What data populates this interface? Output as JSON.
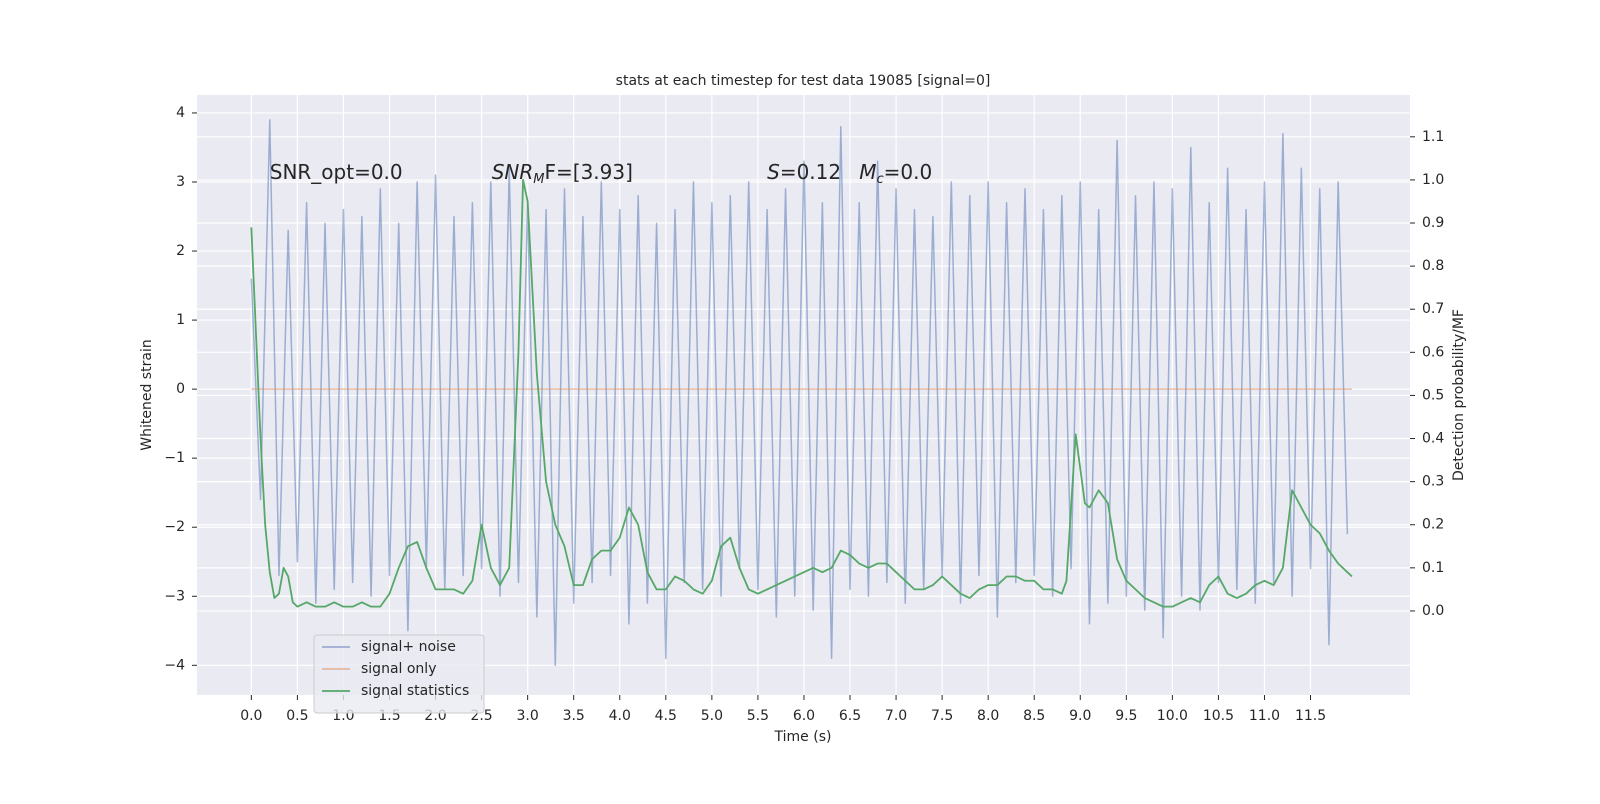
{
  "chart_data": {
    "type": "line",
    "title": "stats at each timestep for test data 19085 [signal=0]",
    "xlabel": "Time (s)",
    "ylabel": "Whitened strain",
    "y2label": "Detection probability/MF",
    "xlim": [
      -0.59,
      12.58
    ],
    "ylim": [
      -4.43,
      4.26
    ],
    "y2lim": [
      -0.195,
      1.197
    ],
    "xticks": [
      {
        "value": 0,
        "label": "0.0"
      },
      0.5,
      {
        "value": 1,
        "label": "1.0"
      },
      1.5,
      {
        "value": 2,
        "label": "2.0"
      },
      2.5,
      {
        "value": 3,
        "label": "3.0"
      },
      3.5,
      {
        "value": 4,
        "label": "4.0"
      },
      4.5,
      {
        "value": 5,
        "label": "5.0"
      },
      5.5,
      {
        "value": 6,
        "label": "6.0"
      },
      6.5,
      {
        "value": 7,
        "label": "7.0"
      },
      7.5,
      {
        "value": 8,
        "label": "8.0"
      },
      8.5,
      {
        "value": 9,
        "label": "9.0"
      },
      9.5,
      {
        "value": 10,
        "label": "10.0"
      },
      10.5,
      {
        "value": 11,
        "label": "11.0"
      },
      11.5
    ],
    "yticks": [
      {
        "value": -4,
        "label": "−4"
      },
      {
        "value": -3,
        "label": "−3"
      },
      {
        "value": -2,
        "label": "−2"
      },
      {
        "value": -1,
        "label": "−1"
      },
      0,
      1,
      2,
      3,
      4
    ],
    "y2ticks": [
      {
        "value": 0,
        "label": "0.0"
      },
      0.1,
      0.2,
      0.3,
      0.4,
      0.5,
      0.6,
      0.7,
      0.8,
      0.9,
      {
        "value": 1,
        "label": "1.0"
      },
      1.1
    ],
    "grid": true,
    "legend": "lower left",
    "series": [
      {
        "name": "signal+ noise",
        "color": "#4c72b0",
        "opacity": 0.5,
        "x": [
          0,
          0.1,
          0.2,
          0.3,
          0.4,
          0.5,
          0.6,
          0.7,
          0.8,
          0.9,
          1,
          1.1,
          1.2,
          1.3,
          1.4,
          1.5,
          1.6,
          1.7,
          1.8,
          1.9,
          2,
          2.1,
          2.2,
          2.3,
          2.4,
          2.5,
          2.6,
          2.7,
          2.8,
          2.9,
          3,
          3.1,
          3.2,
          3.3,
          3.4,
          3.5,
          3.6,
          3.7,
          3.8,
          3.9,
          4,
          4.1,
          4.2,
          4.3,
          4.4,
          4.5,
          4.6,
          4.7,
          4.8,
          4.9,
          5,
          5.1,
          5.2,
          5.3,
          5.4,
          5.5,
          5.6,
          5.7,
          5.8,
          5.9,
          6,
          6.1,
          6.2,
          6.3,
          6.4,
          6.5,
          6.6,
          6.7,
          6.8,
          6.9,
          7,
          7.1,
          7.2,
          7.3,
          7.4,
          7.5,
          7.6,
          7.7,
          7.8,
          7.9,
          8,
          8.1,
          8.2,
          8.3,
          8.4,
          8.5,
          8.6,
          8.7,
          8.8,
          8.9,
          9,
          9.1,
          9.2,
          9.3,
          9.4,
          9.5,
          9.6,
          9.7,
          9.8,
          9.9,
          10,
          10.1,
          10.2,
          10.3,
          10.4,
          10.5,
          10.6,
          10.7,
          10.8,
          10.9,
          11,
          11.1,
          11.2,
          11.3,
          11.4,
          11.5,
          11.6,
          11.7,
          11.8,
          11.9
        ],
        "values": [
          1.6,
          -1.6,
          3.9,
          -2.7,
          2.3,
          -2.5,
          2.7,
          -3.1,
          2.4,
          -2.9,
          2.6,
          -2.8,
          2.5,
          -3.0,
          2.9,
          -2.7,
          2.4,
          -3.5,
          3.0,
          -2.6,
          3.1,
          -2.9,
          2.5,
          -2.7,
          2.7,
          -2.6,
          3.0,
          -3.0,
          3.2,
          -2.8,
          2.7,
          -3.3,
          2.6,
          -4.0,
          2.9,
          -3.1,
          2.5,
          -2.8,
          3.0,
          -2.7,
          2.6,
          -3.4,
          2.8,
          -3.1,
          2.4,
          -3.9,
          2.6,
          -2.8,
          3.0,
          -2.9,
          2.7,
          -3.0,
          2.8,
          -2.6,
          3.0,
          -2.9,
          2.6,
          -3.3,
          2.9,
          -3.0,
          3.3,
          -3.2,
          2.7,
          -3.9,
          3.8,
          -2.9,
          2.7,
          -3.0,
          3.3,
          -2.8,
          2.9,
          -3.1,
          2.6,
          -2.9,
          2.5,
          -2.7,
          3.0,
          -3.1,
          2.8,
          -2.7,
          3.0,
          -3.3,
          2.7,
          -2.8,
          2.9,
          -2.7,
          2.6,
          -3.0,
          2.8,
          -2.6,
          3.0,
          -3.4,
          2.6,
          -3.1,
          3.6,
          -3.0,
          2.8,
          -3.2,
          3.0,
          -3.6,
          2.9,
          -3.0,
          3.5,
          -3.2,
          2.7,
          -2.8,
          3.2,
          -2.9,
          2.6,
          -3.1,
          3.0,
          -2.8,
          3.7,
          -3.0,
          3.2,
          -2.6,
          2.9,
          -3.7,
          3.0,
          -2.1
        ]
      },
      {
        "name": "signal only",
        "color": "#dd8452",
        "opacity": 0.5,
        "x": [
          0,
          11.95
        ],
        "values": [
          0,
          0
        ]
      },
      {
        "name": "signal statistics",
        "color": "#55a868",
        "opacity": 1,
        "axis": "y2",
        "x": [
          0,
          0.1,
          0.15,
          0.2,
          0.25,
          0.3,
          0.35,
          0.4,
          0.45,
          0.5,
          0.6,
          0.7,
          0.8,
          0.9,
          1,
          1.1,
          1.2,
          1.3,
          1.4,
          1.5,
          1.6,
          1.7,
          1.8,
          1.9,
          2,
          2.1,
          2.2,
          2.3,
          2.4,
          2.5,
          2.6,
          2.7,
          2.8,
          2.9,
          2.95,
          3,
          3.1,
          3.2,
          3.3,
          3.4,
          3.5,
          3.6,
          3.7,
          3.8,
          3.9,
          4,
          4.1,
          4.2,
          4.3,
          4.4,
          4.5,
          4.6,
          4.7,
          4.8,
          4.9,
          5,
          5.1,
          5.2,
          5.3,
          5.4,
          5.5,
          5.6,
          5.7,
          5.8,
          5.9,
          6,
          6.1,
          6.2,
          6.3,
          6.4,
          6.5,
          6.6,
          6.7,
          6.8,
          6.9,
          7,
          7.1,
          7.2,
          7.3,
          7.4,
          7.5,
          7.6,
          7.7,
          7.8,
          7.9,
          8,
          8.1,
          8.2,
          8.3,
          8.4,
          8.5,
          8.6,
          8.7,
          8.8,
          8.85,
          8.95,
          9.05,
          9.1,
          9.2,
          9.3,
          9.4,
          9.5,
          9.6,
          9.7,
          9.8,
          9.9,
          10,
          10.1,
          10.2,
          10.3,
          10.4,
          10.5,
          10.6,
          10.7,
          10.8,
          10.9,
          11,
          11.1,
          11.2,
          11.3,
          11.4,
          11.5,
          11.6,
          11.7,
          11.8,
          11.9,
          11.95
        ],
        "values": [
          0.89,
          0.4,
          0.2,
          0.09,
          0.03,
          0.04,
          0.1,
          0.08,
          0.02,
          0.01,
          0.02,
          0.01,
          0.01,
          0.02,
          0.01,
          0.01,
          0.02,
          0.01,
          0.01,
          0.04,
          0.1,
          0.15,
          0.16,
          0.1,
          0.05,
          0.05,
          0.05,
          0.04,
          0.07,
          0.2,
          0.1,
          0.06,
          0.1,
          0.6,
          1.0,
          0.95,
          0.55,
          0.3,
          0.2,
          0.15,
          0.06,
          0.06,
          0.12,
          0.14,
          0.14,
          0.17,
          0.24,
          0.2,
          0.09,
          0.05,
          0.05,
          0.08,
          0.07,
          0.05,
          0.04,
          0.07,
          0.15,
          0.17,
          0.1,
          0.05,
          0.04,
          0.05,
          0.06,
          0.07,
          0.08,
          0.09,
          0.1,
          0.09,
          0.1,
          0.14,
          0.13,
          0.11,
          0.1,
          0.11,
          0.11,
          0.09,
          0.07,
          0.05,
          0.05,
          0.06,
          0.08,
          0.06,
          0.04,
          0.03,
          0.05,
          0.06,
          0.06,
          0.08,
          0.08,
          0.07,
          0.07,
          0.05,
          0.05,
          0.04,
          0.07,
          0.41,
          0.25,
          0.24,
          0.28,
          0.25,
          0.12,
          0.07,
          0.05,
          0.03,
          0.02,
          0.01,
          0.01,
          0.02,
          0.03,
          0.02,
          0.06,
          0.08,
          0.04,
          0.03,
          0.04,
          0.06,
          0.07,
          0.06,
          0.1,
          0.28,
          0.24,
          0.2,
          0.18,
          0.14,
          0.11,
          0.09,
          0.08
        ]
      }
    ],
    "annotations": [
      {
        "x": 0.2,
        "y": 3.13,
        "text": "SNR_opt=0.0"
      },
      {
        "x": 2.61,
        "y": 3.13,
        "text": "SNR",
        "sub": "M",
        "tail": "F=[3.93]"
      },
      {
        "x": 5.6,
        "y": 3.13,
        "text": "S",
        "tail": "=0.12"
      },
      {
        "x": 6.6,
        "y": 3.13,
        "text": "M",
        "sub": "c",
        "tail": "=0.0"
      }
    ]
  }
}
